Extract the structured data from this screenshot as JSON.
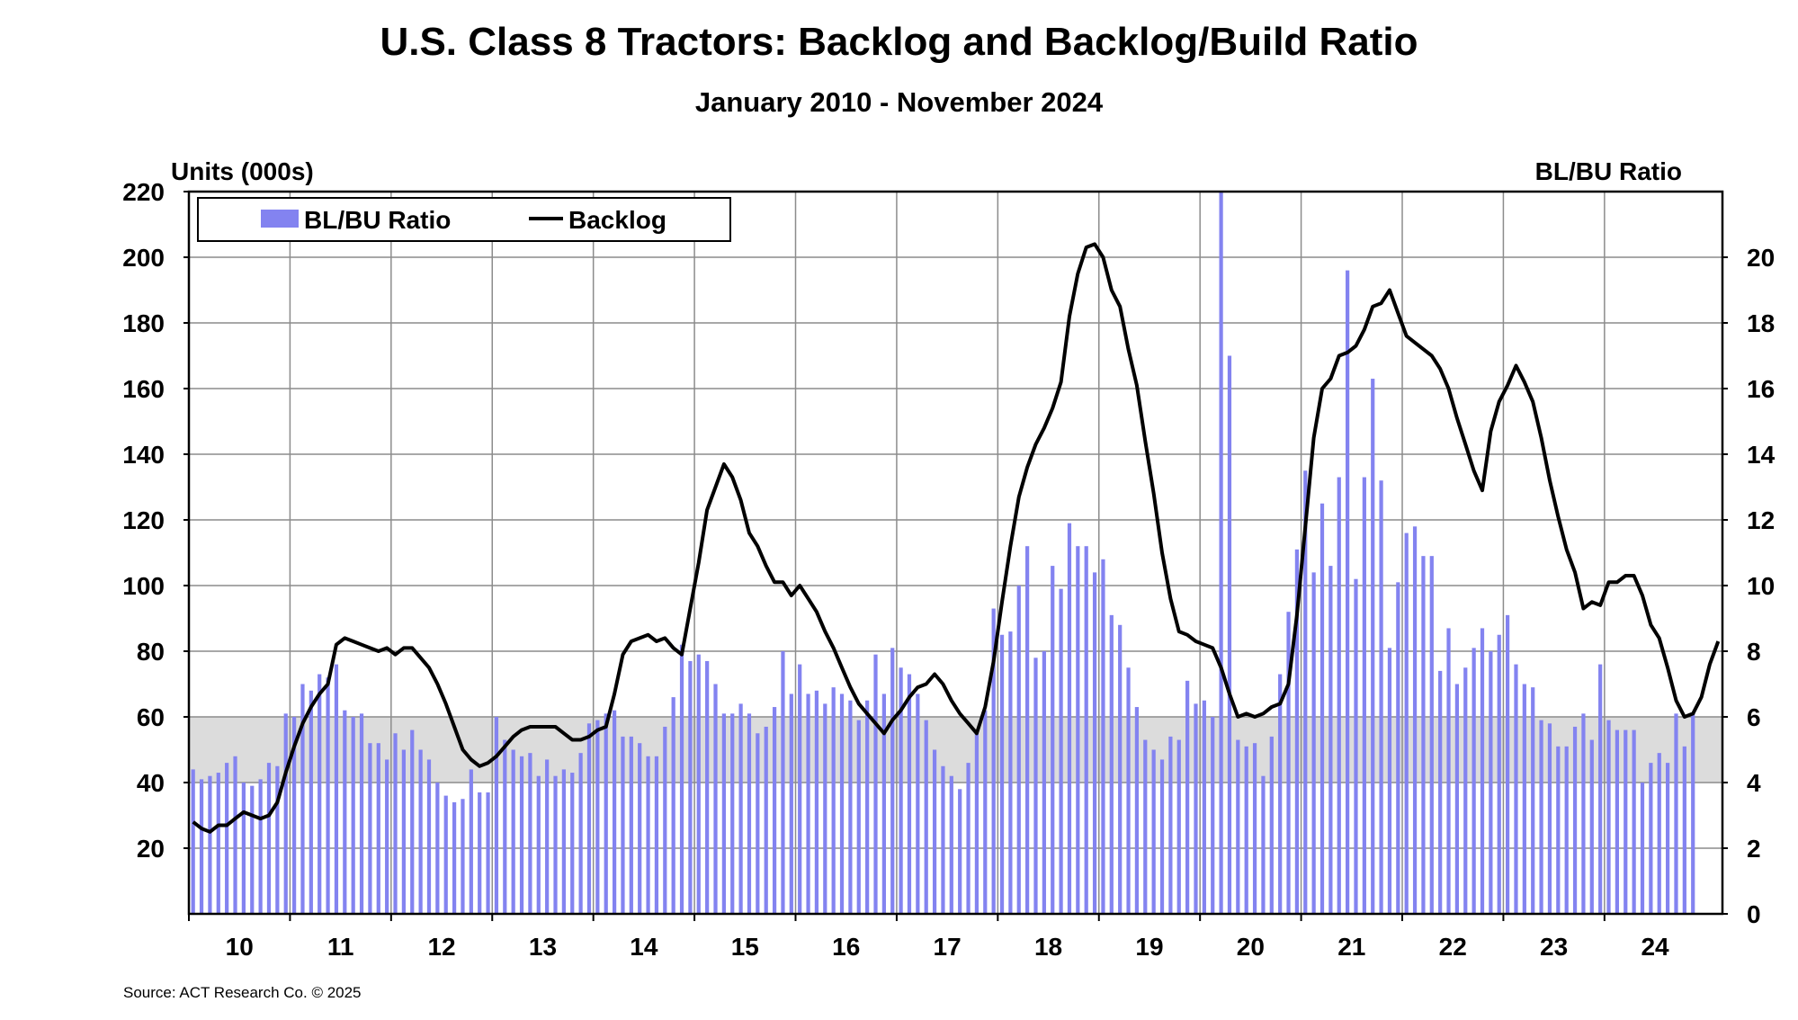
{
  "title": "U.S. Class 8 Tractors: Backlog and Backlog/Build Ratio",
  "subtitle": "January 2010 - November 2024",
  "source": "Source: ACT Research Co. © 2025",
  "colors": {
    "bar": "#8383f0",
    "line": "#000000",
    "band": "#dcdcdc",
    "grid": "#8c8c8c"
  },
  "chart_data": {
    "type": "bar+line",
    "left_axis": {
      "label": "Units (000s)",
      "ticks": [
        20,
        40,
        60,
        80,
        100,
        120,
        140,
        160,
        180,
        200,
        220
      ],
      "range": [
        0,
        220
      ]
    },
    "right_axis": {
      "label": "BL/BU Ratio",
      "ticks": [
        0,
        2,
        4,
        6,
        8,
        10,
        12,
        14,
        16,
        18,
        20
      ],
      "range": [
        0,
        22
      ]
    },
    "x_tick_labels": [
      "10",
      "11",
      "12",
      "13",
      "14",
      "15",
      "16",
      "17",
      "18",
      "19",
      "20",
      "21",
      "22",
      "23",
      "24"
    ],
    "x_start": "2010-01",
    "x_end": "2024-11",
    "shaded_band": {
      "axis": "left",
      "range": [
        40,
        60
      ]
    },
    "grid": true,
    "legend": {
      "position": "top-left",
      "entries": [
        "BL/BU Ratio",
        "Backlog"
      ]
    },
    "series": [
      {
        "name": "BL/BU Ratio",
        "type": "bar",
        "axis": "right",
        "values": [
          4.4,
          4.1,
          4.2,
          4.3,
          4.6,
          4.8,
          4.0,
          3.9,
          4.1,
          4.6,
          4.5,
          6.1,
          6.0,
          7.0,
          6.8,
          7.3,
          7.2,
          7.6,
          6.2,
          6.0,
          6.1,
          5.2,
          5.2,
          4.7,
          5.5,
          5.0,
          5.6,
          5.0,
          4.7,
          4.0,
          3.6,
          3.4,
          3.5,
          4.4,
          3.7,
          3.7,
          6.0,
          5.3,
          5.0,
          4.8,
          4.9,
          4.2,
          4.7,
          4.2,
          4.4,
          4.3,
          4.9,
          5.8,
          5.9,
          6.1,
          6.2,
          5.4,
          5.4,
          5.2,
          4.8,
          4.8,
          5.7,
          6.6,
          8.2,
          7.7,
          7.9,
          7.7,
          7.0,
          6.1,
          6.1,
          6.4,
          6.1,
          5.5,
          5.7,
          6.3,
          8.0,
          6.7,
          7.6,
          6.7,
          6.8,
          6.4,
          6.9,
          6.7,
          6.5,
          5.9,
          6.5,
          7.9,
          6.7,
          8.1,
          7.5,
          7.3,
          6.7,
          5.9,
          5.0,
          4.5,
          4.2,
          3.8,
          4.6,
          5.6,
          6.2,
          9.3,
          8.5,
          8.6,
          10.0,
          11.2,
          7.8,
          8.0,
          10.6,
          9.9,
          11.9,
          11.2,
          11.2,
          10.4,
          10.8,
          9.1,
          8.8,
          7.5,
          6.3,
          5.3,
          5.0,
          4.7,
          5.4,
          5.3,
          7.1,
          6.4,
          6.5,
          6.0,
          22.0,
          17.0,
          5.3,
          5.1,
          5.2,
          4.2,
          5.4,
          7.3,
          9.2,
          11.1,
          13.5,
          10.4,
          12.5,
          10.6,
          13.3,
          19.6,
          10.2,
          13.3,
          16.3,
          13.2,
          8.1,
          10.1,
          11.6,
          11.8,
          10.9,
          10.9,
          7.4,
          8.7,
          7.0,
          7.5,
          8.1,
          8.7,
          8.0,
          8.5,
          9.1,
          7.6,
          7.0,
          6.9,
          5.9,
          5.8,
          5.1,
          5.1,
          5.7,
          6.1,
          5.3,
          7.6,
          5.9,
          5.6,
          5.6,
          5.6,
          4.0,
          4.6,
          4.9,
          4.6,
          6.1,
          5.1,
          6.1
        ]
      },
      {
        "name": "Backlog",
        "type": "line",
        "axis": "left",
        "values": [
          28,
          26,
          25,
          27,
          27,
          29,
          31,
          30,
          29,
          30,
          34,
          43,
          51,
          58,
          63,
          67,
          70,
          82,
          84,
          83,
          82,
          81,
          80,
          81,
          79,
          81,
          81,
          78,
          75,
          70,
          64,
          57,
          50,
          47,
          45,
          46,
          48,
          51,
          54,
          56,
          57,
          57,
          57,
          57,
          55,
          53,
          53,
          54,
          56,
          57,
          67,
          79,
          83,
          84,
          85,
          83,
          84,
          81,
          79,
          93,
          107,
          123,
          130,
          137,
          133,
          126,
          116,
          112,
          106,
          101,
          101,
          97,
          100,
          96,
          92,
          86,
          81,
          75,
          69,
          64,
          61,
          58,
          55,
          59,
          62,
          66,
          69,
          70,
          73,
          70,
          65,
          61,
          58,
          55,
          63,
          77,
          95,
          112,
          127,
          136,
          143,
          148,
          154,
          162,
          182,
          195,
          203,
          204,
          200,
          190,
          185,
          172,
          161,
          144,
          128,
          110,
          96,
          86,
          85,
          83,
          82,
          81,
          75,
          67,
          60,
          61,
          60,
          61,
          63,
          64,
          70,
          91,
          118,
          145,
          160,
          163,
          170,
          171,
          173,
          178,
          185,
          186,
          190,
          183,
          176,
          174,
          172,
          170,
          166,
          160,
          151,
          143,
          135,
          129,
          147,
          156,
          161,
          167,
          162,
          156,
          145,
          132,
          121,
          111,
          104,
          93,
          95,
          94,
          101,
          101,
          103,
          103,
          97,
          88,
          84,
          75,
          65,
          60,
          61,
          66,
          76,
          83
        ]
      }
    ]
  }
}
